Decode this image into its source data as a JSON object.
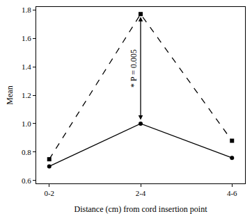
{
  "chart_data": {
    "type": "line",
    "xlabel": "Distance (cm) from cord insertion point",
    "ylabel": "Mean",
    "categories": [
      "0-2",
      "2-4",
      "4-6"
    ],
    "series": [
      {
        "color": "#000000",
        "line_style": "dashed",
        "marker": "square",
        "values": [
          0.75,
          1.77,
          0.88
        ]
      },
      {
        "color": "#000000",
        "line_style": "solid",
        "marker": "circle",
        "values": [
          0.7,
          1.0,
          0.76
        ]
      }
    ],
    "ylim": [
      0.58,
      1.82
    ],
    "yticks": [
      0.6,
      0.8,
      {
        "value": 1,
        "label": "1.0"
      },
      1.2,
      1.4,
      1.6,
      1.8
    ],
    "grid": false,
    "annotations": [
      {
        "text": "* P = 0.005",
        "x": "2-4",
        "from": 1.0,
        "to": 1.77
      }
    ]
  }
}
